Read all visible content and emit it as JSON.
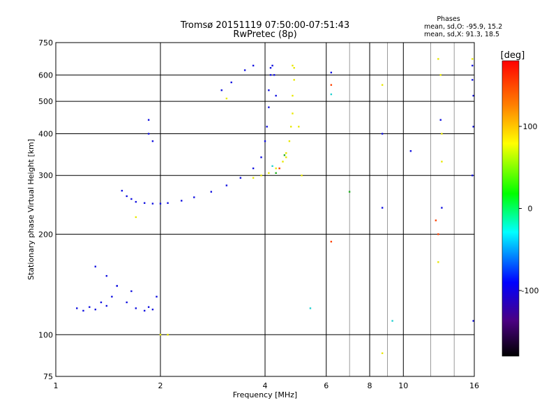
{
  "chart_data": {
    "type": "scatter",
    "title": "Tromsø 20151119 07:50:00-07:51:43",
    "subtitle": "RwPretec (8p)",
    "xlabel": "Frequency [MHz]",
    "ylabel": "Stationary phase Virtual Height [km]",
    "x_scale": "log",
    "y_scale": "log",
    "xlim": [
      1,
      16
    ],
    "ylim": [
      75,
      750
    ],
    "x_ticks": [
      1,
      2,
      4,
      6,
      8,
      10,
      16
    ],
    "y_ticks": [
      75,
      100,
      200,
      300,
      400,
      500,
      600,
      750
    ],
    "grid": true,
    "legend": {
      "title": "Phases",
      "line1": "mean, sd,O: -95.9, 15.2",
      "line2": "mean, sd,X:  91.3, 18.5"
    },
    "colorbar": {
      "label": "[deg]",
      "range": [
        -180,
        180
      ],
      "ticks": [
        100,
        0,
        -100
      ],
      "colors": [
        "#000000",
        "#4b0082",
        "#0000ff",
        "#00ffff",
        "#00ff00",
        "#ffff00",
        "#ff8000",
        "#ff0000"
      ]
    },
    "series": [
      {
        "color": "#1010e0",
        "x": [
          1.55,
          1.6,
          1.65,
          1.7,
          1.8,
          1.9,
          2.0,
          2.1,
          2.3,
          2.5,
          2.8,
          3.1,
          3.4,
          3.7,
          3.9,
          4.0,
          4.05,
          4.1,
          4.1,
          4.15,
          4.15,
          4.2,
          4.25,
          4.3,
          3.0,
          3.2,
          3.5,
          3.7,
          1.15,
          1.2,
          1.25,
          1.3,
          1.35,
          1.4,
          1.45,
          1.5,
          1.6,
          1.7,
          1.8,
          1.85,
          1.9,
          1.95,
          1.4,
          1.5,
          1.65,
          1.3,
          1.85,
          1.85,
          1.9,
          6.2,
          8.7,
          8.7,
          10.5,
          12.8,
          12.9,
          15.8,
          15.8,
          15.9,
          15.9,
          15.8,
          15.9
        ],
        "y": [
          270,
          260,
          255,
          250,
          248,
          247,
          247,
          248,
          252,
          258,
          268,
          280,
          295,
          315,
          340,
          380,
          420,
          480,
          540,
          600,
          630,
          640,
          600,
          520,
          540,
          570,
          620,
          640,
          120,
          118,
          121,
          119,
          125,
          122,
          130,
          140,
          125,
          120,
          118,
          121,
          119,
          130,
          150,
          140,
          135,
          160,
          400,
          440,
          380,
          610,
          400,
          240,
          355,
          440,
          240,
          640,
          580,
          520,
          420,
          300,
          110
        ]
      },
      {
        "color": "#e8e800",
        "x": [
          3.7,
          3.9,
          4.1,
          4.3,
          4.5,
          4.6,
          4.7,
          4.75,
          4.8,
          4.8,
          4.85,
          4.85,
          4.8,
          4.6,
          5.0,
          5.1,
          1.7,
          2.0,
          2.1,
          3.1,
          8.7,
          8.7,
          12.6,
          12.8,
          12.9,
          12.9,
          12.6,
          15.8
        ],
        "y": [
          295,
          300,
          305,
          315,
          330,
          350,
          380,
          420,
          460,
          520,
          580,
          630,
          640,
          340,
          420,
          300,
          225,
          100,
          100,
          510,
          560,
          88,
          670,
          600,
          400,
          330,
          165,
          670
        ]
      },
      {
        "color": "#ff4000",
        "x": [
          4.4,
          6.2,
          6.2,
          12.4,
          12.6
        ],
        "y": [
          315,
          560,
          190,
          220,
          200
        ]
      },
      {
        "color": "#20d0d0",
        "x": [
          4.2,
          6.2,
          9.3,
          5.4
        ],
        "y": [
          320,
          525,
          110,
          120
        ]
      },
      {
        "color": "#20b020",
        "x": [
          4.3,
          4.55,
          7.0
        ],
        "y": [
          305,
          345,
          268
        ]
      }
    ]
  }
}
